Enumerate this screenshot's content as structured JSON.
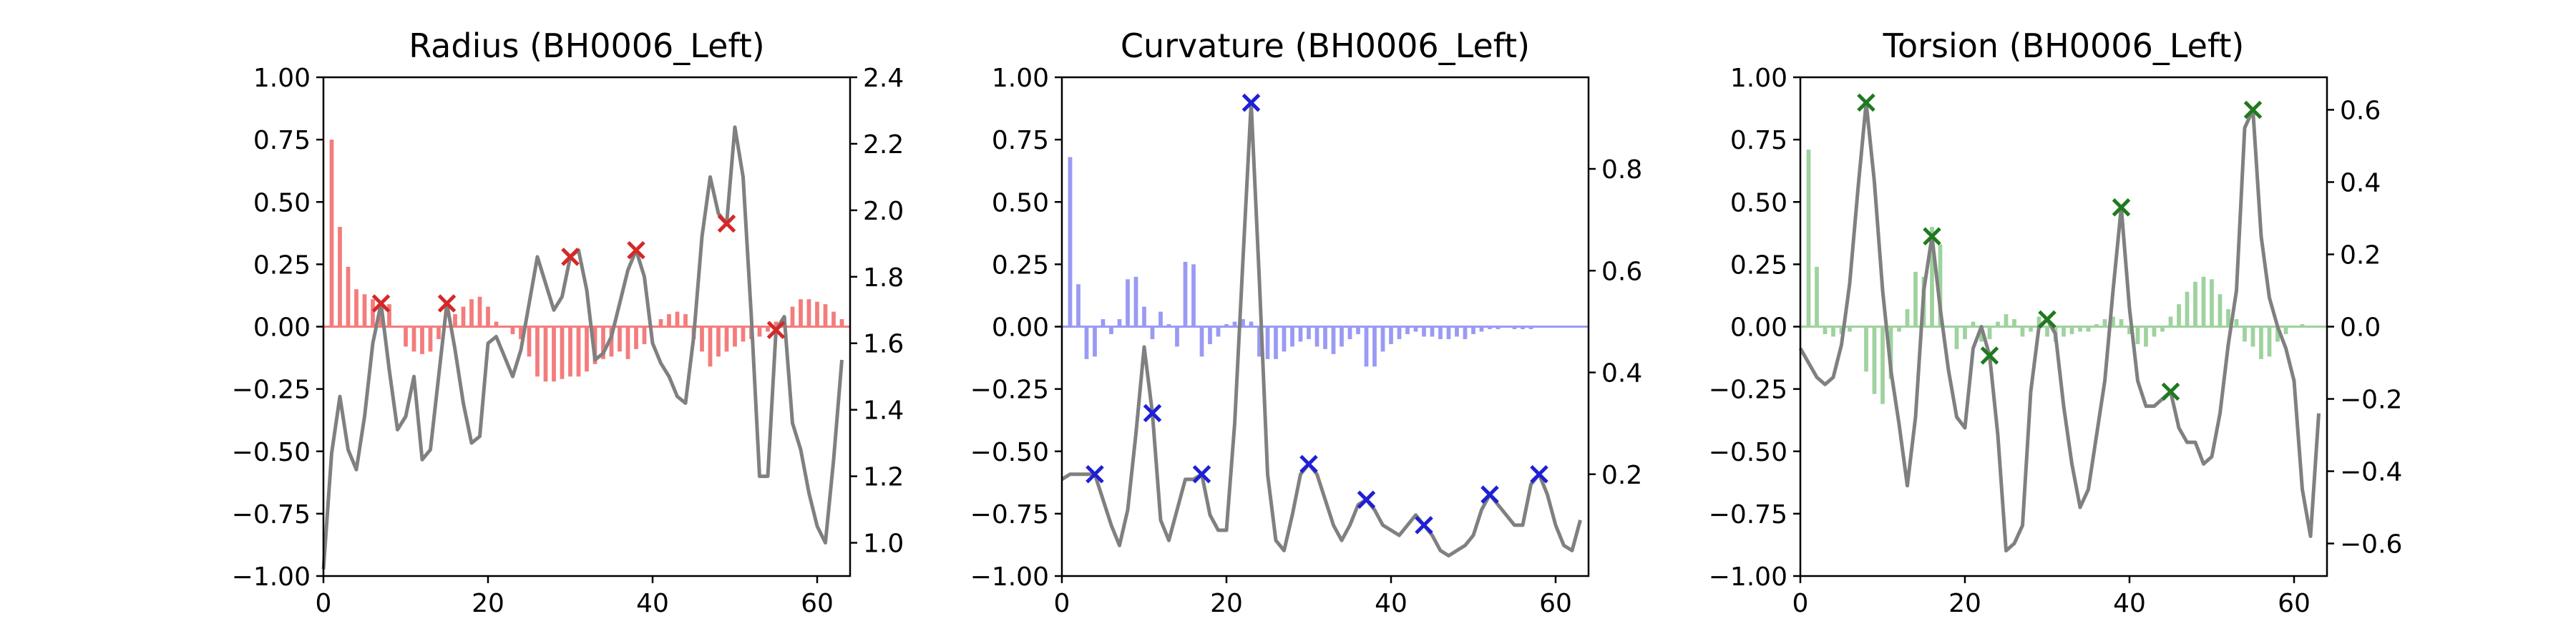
{
  "chart_data": [
    {
      "type": "bar+line",
      "title": "Radius (BH0006_Left)",
      "xlim": [
        0,
        64
      ],
      "ylim_left": [
        -1.0,
        1.0
      ],
      "ylim_right": [
        0.9,
        2.4
      ],
      "x_ticks": [
        "0",
        "20",
        "40",
        "60"
      ],
      "left_ticks": [
        "1.00",
        "0.75",
        "0.50",
        "0.25",
        "0.00",
        "−0.25",
        "−0.50",
        "−0.75",
        "−1.00"
      ],
      "right_ticks": [
        "2.4",
        "2.2",
        "2.0",
        "1.8",
        "1.6",
        "1.4",
        "1.2",
        "1.0"
      ],
      "colors": {
        "bars": "#f47c7c",
        "line": "#808080",
        "markers": "#d62728"
      },
      "bars": [
        0,
        0.75,
        0.4,
        0.24,
        0.15,
        0.13,
        0.11,
        0.1,
        0.09,
        0,
        -0.08,
        -0.1,
        -0.11,
        -0.1,
        -0.05,
        0,
        0.05,
        0.08,
        0.11,
        0.12,
        0.08,
        0.02,
        0,
        -0.03,
        -0.05,
        -0.12,
        -0.2,
        -0.22,
        -0.22,
        -0.21,
        -0.2,
        -0.2,
        -0.18,
        -0.15,
        -0.13,
        -0.12,
        -0.1,
        -0.13,
        -0.09,
        -0.07,
        0,
        0.03,
        0.05,
        0.06,
        0.05,
        -0.05,
        -0.1,
        -0.16,
        -0.12,
        -0.1,
        -0.08,
        -0.06,
        -0.05,
        -0.04,
        -0.02,
        0.02,
        0.04,
        0.08,
        0.11,
        0.11,
        0.1,
        0.09,
        0.06,
        0.03
      ],
      "line": [
        0.92,
        1.27,
        1.44,
        1.28,
        1.22,
        1.38,
        1.6,
        1.72,
        1.52,
        1.34,
        1.38,
        1.5,
        1.25,
        1.28,
        1.5,
        1.72,
        1.58,
        1.42,
        1.3,
        1.32,
        1.6,
        1.62,
        1.56,
        1.5,
        1.58,
        1.72,
        1.86,
        1.78,
        1.7,
        1.74,
        1.86,
        1.88,
        1.76,
        1.55,
        1.57,
        1.62,
        1.72,
        1.82,
        1.88,
        1.8,
        1.6,
        1.54,
        1.5,
        1.44,
        1.42,
        1.62,
        1.92,
        2.1,
        1.99,
        1.96,
        2.25,
        2.1,
        1.68,
        1.2,
        1.2,
        1.64,
        1.68,
        1.36,
        1.28,
        1.15,
        1.05,
        1.0,
        1.25,
        1.55
      ],
      "markers_x": [
        7,
        15,
        30,
        38,
        49,
        55
      ]
    },
    {
      "type": "bar+line",
      "title": "Curvature (BH0006_Left)",
      "xlim": [
        0,
        64
      ],
      "ylim_left": [
        -1.0,
        1.0
      ],
      "ylim_right": [
        0.0,
        0.98
      ],
      "x_ticks": [
        "0",
        "20",
        "40",
        "60"
      ],
      "left_ticks": [
        "1.00",
        "0.75",
        "0.50",
        "0.25",
        "0.00",
        "−0.25",
        "−0.50",
        "−0.75",
        "−1.00"
      ],
      "right_ticks": [
        "0.8",
        "0.6",
        "0.4",
        "0.2"
      ],
      "colors": {
        "bars": "#9a9af4",
        "line": "#808080",
        "markers": "#1f1fd6"
      },
      "bars": [
        0,
        0.68,
        0.17,
        -0.13,
        -0.12,
        0.03,
        -0.03,
        0.03,
        0.19,
        0.2,
        0.08,
        -0.05,
        0.06,
        0.01,
        -0.08,
        0.26,
        0.25,
        -0.12,
        -0.07,
        -0.04,
        0.01,
        0.02,
        0.03,
        0.02,
        -0.12,
        -0.13,
        -0.13,
        -0.1,
        -0.08,
        -0.06,
        -0.05,
        -0.08,
        -0.09,
        -0.11,
        -0.08,
        -0.05,
        -0.03,
        -0.16,
        -0.16,
        -0.1,
        -0.07,
        -0.05,
        -0.03,
        -0.02,
        -0.04,
        -0.04,
        -0.05,
        -0.05,
        -0.04,
        -0.05,
        -0.03,
        -0.02,
        -0.01,
        -0.01,
        0,
        -0.01,
        -0.01,
        -0.01,
        0,
        0,
        0,
        0,
        0,
        0
      ],
      "line": [
        0.19,
        0.2,
        0.2,
        0.2,
        0.2,
        0.15,
        0.1,
        0.06,
        0.13,
        0.28,
        0.45,
        0.32,
        0.11,
        0.07,
        0.13,
        0.19,
        0.19,
        0.2,
        0.12,
        0.09,
        0.09,
        0.3,
        0.62,
        0.93,
        0.58,
        0.2,
        0.07,
        0.05,
        0.12,
        0.2,
        0.22,
        0.2,
        0.15,
        0.1,
        0.07,
        0.1,
        0.14,
        0.15,
        0.13,
        0.1,
        0.09,
        0.08,
        0.1,
        0.12,
        0.1,
        0.08,
        0.05,
        0.04,
        0.05,
        0.06,
        0.08,
        0.13,
        0.16,
        0.14,
        0.12,
        0.1,
        0.1,
        0.18,
        0.2,
        0.16,
        0.1,
        0.06,
        0.05,
        0.11
      ],
      "markers_x": [
        4,
        11,
        17,
        23,
        30,
        37,
        44,
        52,
        58
      ]
    },
    {
      "type": "bar+line",
      "title": "Torsion (BH0006_Left)",
      "xlim": [
        0,
        64
      ],
      "ylim_left": [
        -1.0,
        1.0
      ],
      "ylim_right": [
        -0.69,
        0.69
      ],
      "x_ticks": [
        "0",
        "20",
        "40",
        "60"
      ],
      "left_ticks": [
        "1.00",
        "0.75",
        "0.50",
        "0.25",
        "0.00",
        "−0.25",
        "−0.50",
        "−0.75",
        "−1.00"
      ],
      "right_ticks": [
        "0.6",
        "0.4",
        "0.2",
        "0.0",
        "−0.2",
        "−0.4",
        "−0.6"
      ],
      "colors": {
        "bars": "#9ed29e",
        "line": "#808080",
        "markers": "#1f7a1f"
      },
      "bars": [
        0,
        0.71,
        0.24,
        -0.03,
        -0.04,
        -0.03,
        -0.02,
        0,
        -0.18,
        -0.27,
        -0.31,
        -0.21,
        -0.02,
        0.07,
        0.22,
        0.2,
        0.4,
        0.33,
        0,
        -0.09,
        -0.05,
        0.02,
        -0.06,
        -0.05,
        0.02,
        0.05,
        0.03,
        -0.04,
        -0.02,
        0.04,
        -0.04,
        -0.06,
        -0.04,
        -0.03,
        -0.02,
        -0.02,
        0.01,
        0.03,
        0.04,
        0.03,
        -0.03,
        -0.07,
        -0.08,
        -0.04,
        -0.02,
        0.04,
        0.09,
        0.14,
        0.18,
        0.2,
        0.19,
        0.13,
        0.07,
        0.03,
        -0.06,
        -0.08,
        -0.13,
        -0.12,
        -0.06,
        -0.03,
        0,
        0.01,
        0,
        0
      ],
      "line": [
        -0.06,
        -0.1,
        -0.14,
        -0.16,
        -0.14,
        -0.05,
        0.12,
        0.38,
        0.62,
        0.4,
        0.1,
        -0.12,
        -0.27,
        -0.44,
        -0.25,
        0.1,
        0.25,
        0.05,
        -0.12,
        -0.25,
        -0.28,
        -0.06,
        0.0,
        -0.08,
        -0.3,
        -0.62,
        -0.6,
        -0.55,
        -0.18,
        0.0,
        0.02,
        -0.02,
        -0.22,
        -0.38,
        -0.5,
        -0.45,
        -0.3,
        -0.15,
        0.1,
        0.33,
        0.05,
        -0.15,
        -0.22,
        -0.22,
        -0.2,
        -0.18,
        -0.28,
        -0.32,
        -0.32,
        -0.38,
        -0.36,
        -0.24,
        -0.05,
        0.1,
        0.55,
        0.6,
        0.25,
        0.08,
        0.0,
        -0.06,
        -0.15,
        -0.45,
        -0.58,
        -0.24
      ],
      "markers_x": [
        8,
        16,
        23,
        30,
        39,
        45,
        55
      ]
    }
  ]
}
